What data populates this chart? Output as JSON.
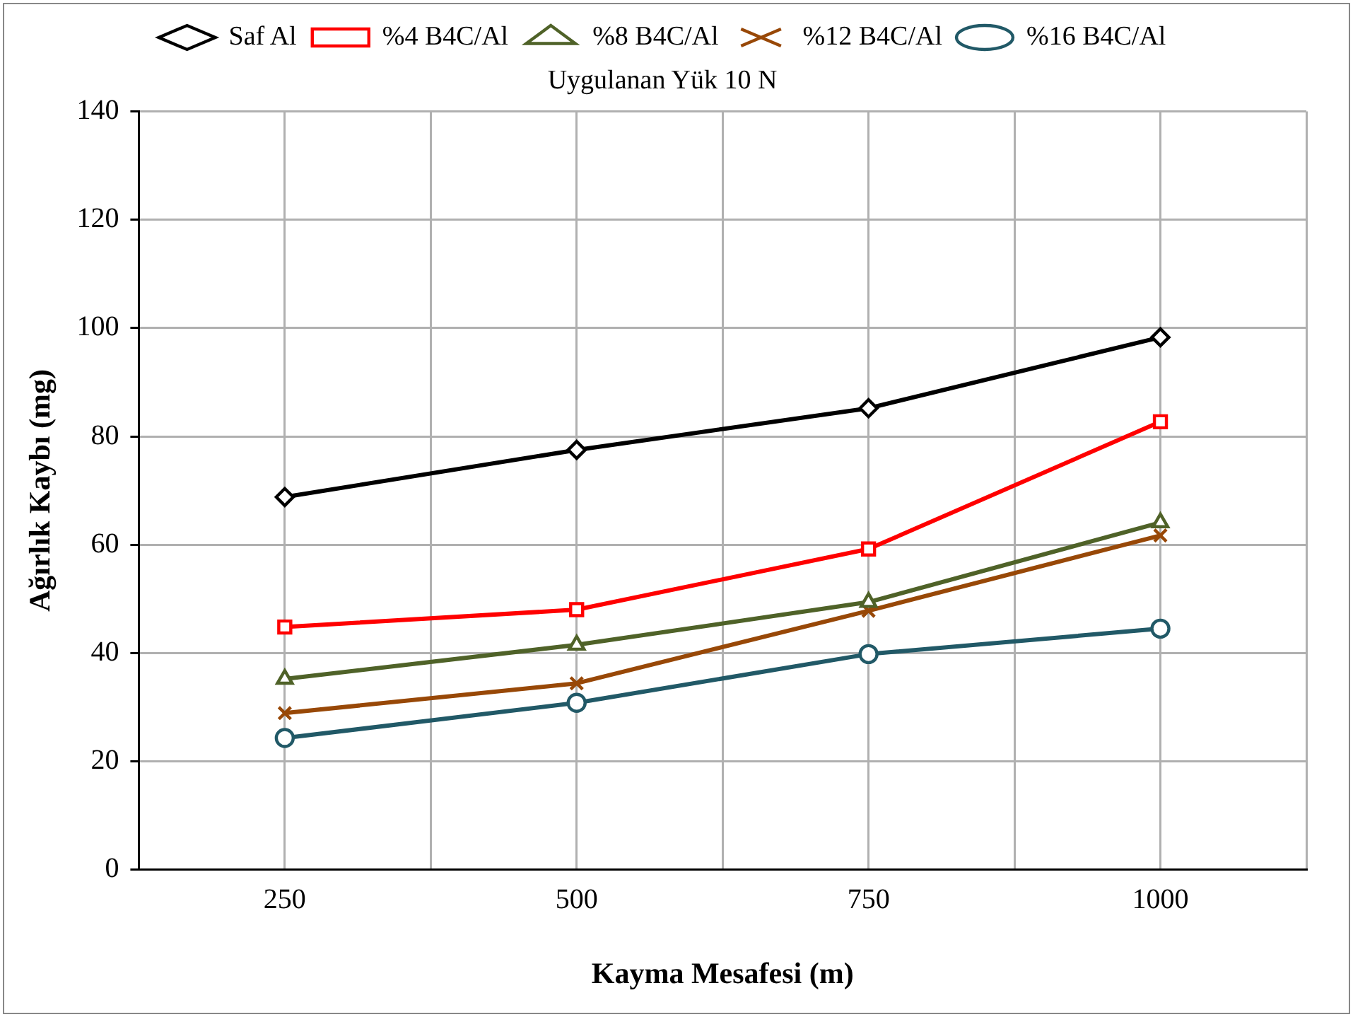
{
  "chart_data": {
    "type": "line",
    "subtitle": "Uygulanan Yük 10 N",
    "xlabel": "Kayma Mesafesi (m)",
    "ylabel": "Ağırlık Kaybı (mg)",
    "x": [
      250,
      500,
      750,
      1000
    ],
    "series": [
      {
        "name": "Saf Al",
        "color": "#000000",
        "marker": "diamond",
        "values": [
          68.8,
          77.5,
          85.2,
          98.3
        ]
      },
      {
        "name": "%4 B4C/Al",
        "color": "#ff0000",
        "marker": "square",
        "values": [
          44.8,
          48.0,
          59.2,
          82.7
        ]
      },
      {
        "name": "%8 B4C/Al",
        "color": "#4f6228",
        "marker": "triangle",
        "values": [
          35.2,
          41.5,
          49.4,
          64.1
        ]
      },
      {
        "name": "%12 B4C/Al",
        "color": "#984807",
        "marker": "cross",
        "values": [
          28.9,
          34.4,
          47.8,
          61.7
        ]
      },
      {
        "name": "%16 B4C/Al",
        "color": "#215967",
        "marker": "circle",
        "values": [
          24.3,
          30.8,
          39.8,
          44.5
        ]
      }
    ],
    "xlim": [
      125,
      1125
    ],
    "xticks": [
      {
        "value": 125,
        "label": null
      },
      250,
      {
        "value": 375,
        "label": null
      },
      500,
      {
        "value": 625,
        "label": null
      },
      750,
      {
        "value": 875,
        "label": null
      },
      1000,
      {
        "value": 1125,
        "label": null
      }
    ],
    "ylim": [
      0,
      140
    ],
    "yticks": [
      0,
      20,
      40,
      60,
      80,
      100,
      120,
      140
    ],
    "grid": true,
    "legend": "top",
    "line_style": "solid"
  }
}
